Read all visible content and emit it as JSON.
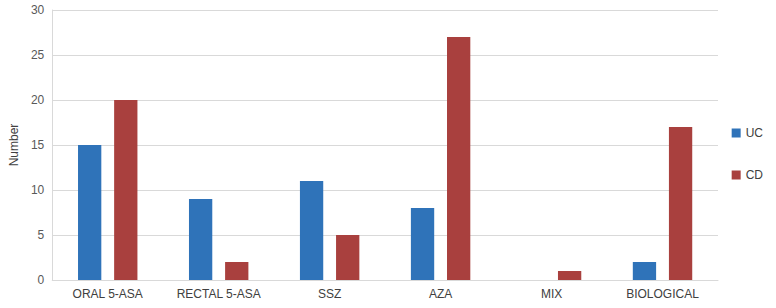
{
  "chart_data": {
    "type": "bar",
    "y_label": "Number",
    "categories": [
      "ORAL 5-ASA",
      "RECTAL 5-ASA",
      "SSZ",
      "AZA",
      "MIX",
      "BIOLOGICAL"
    ],
    "series": [
      {
        "name": "UC",
        "color": "#2f73b9",
        "values": [
          15,
          9,
          11,
          8,
          0,
          2
        ]
      },
      {
        "name": "CD",
        "color": "#a9403e",
        "values": [
          20,
          2,
          5,
          27,
          1,
          17
        ]
      }
    ],
    "ylim": [
      0,
      30
    ],
    "yticks": [
      0,
      5,
      10,
      15,
      20,
      25,
      30
    ],
    "grid": true,
    "legend": "right"
  }
}
